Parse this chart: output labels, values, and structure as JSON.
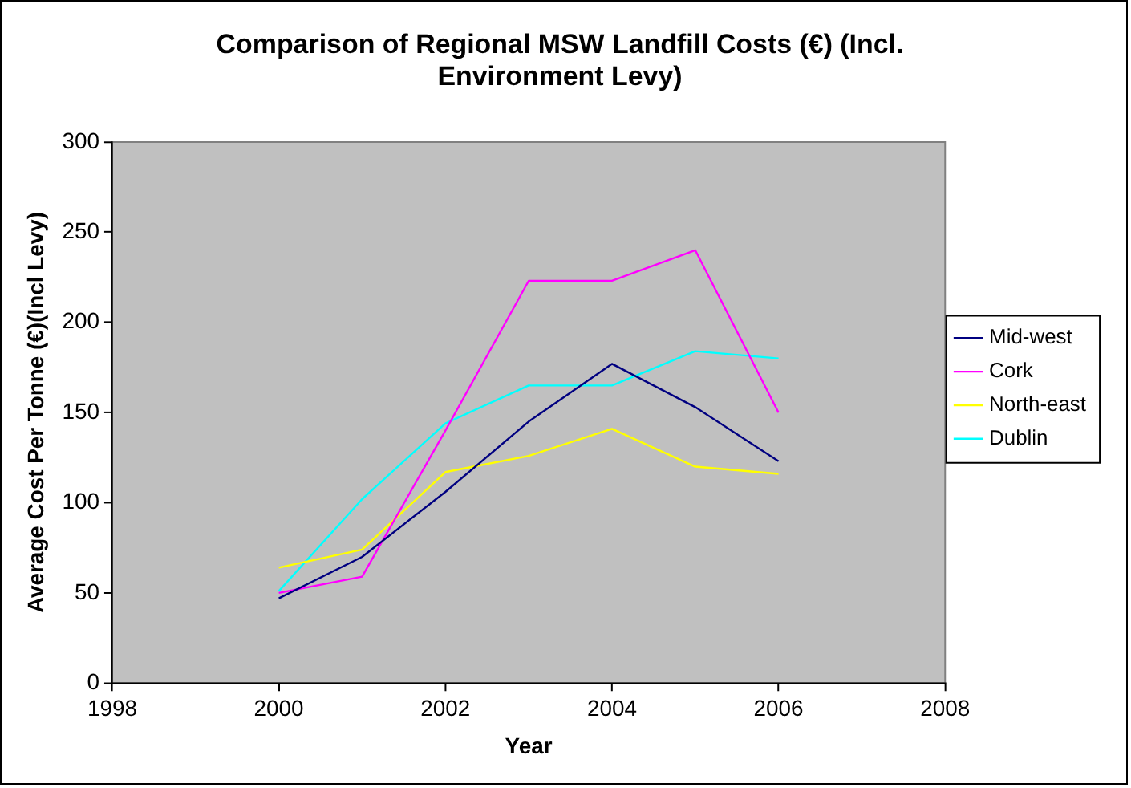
{
  "chart_data": {
    "type": "line",
    "title": "Comparison of Regional MSW Landfill Costs (€) (Incl. Environment Levy)",
    "xlabel": "Year",
    "ylabel": "Average Cost Per Tonne (€)(Incl Levy)",
    "x": [
      2000,
      2001,
      2002,
      2003,
      2004,
      2005,
      2006
    ],
    "series": [
      {
        "name": "Mid-west",
        "color": "#000080",
        "values": [
          47,
          70,
          106,
          145,
          177,
          153,
          123
        ]
      },
      {
        "name": "Cork",
        "color": "#ff00ff",
        "values": [
          50,
          59,
          140,
          223,
          223,
          240,
          150
        ]
      },
      {
        "name": "North-east",
        "color": "#ffff00",
        "values": [
          64,
          74,
          117,
          126,
          141,
          120,
          116
        ]
      },
      {
        "name": "Dublin",
        "color": "#00ffff",
        "values": [
          51,
          102,
          144,
          165,
          165,
          184,
          180
        ]
      }
    ],
    "xlim": [
      1998,
      2008
    ],
    "xticks": [
      1998,
      2000,
      2002,
      2004,
      2006,
      2008
    ],
    "ylim": [
      0,
      300
    ],
    "yticks": [
      0,
      50,
      100,
      150,
      200,
      250,
      300
    ],
    "grid": false,
    "legend": "right",
    "marker": "none",
    "line_style": "solid"
  }
}
